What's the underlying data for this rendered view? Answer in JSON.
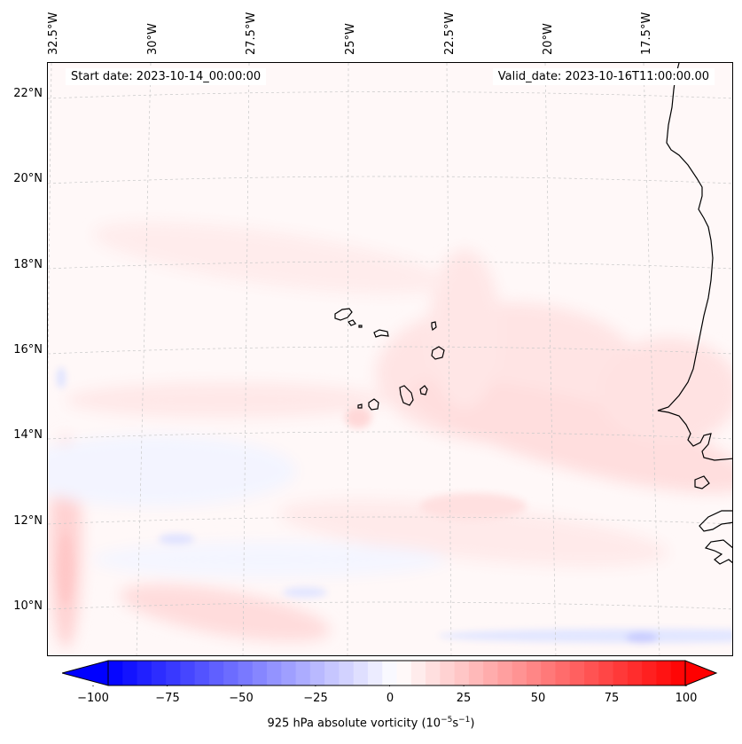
{
  "header": {
    "start_date": "Start date: 2023-10-14_00:00:00",
    "valid_date": "Valid_date: 2023-10-16T11:00:00.00"
  },
  "map": {
    "lon_labels": [
      "32.5°W",
      "30°W",
      "27.5°W",
      "25°W",
      "22.5°W",
      "20°W",
      "17.5°W"
    ],
    "lat_labels": [
      "22°N",
      "20°N",
      "18°N",
      "16°N",
      "14°N",
      "12°N",
      "10°N"
    ],
    "gridlines": true,
    "coastline_color": "#000000"
  },
  "colorbar": {
    "min": -100,
    "max": 100,
    "ticks": [
      "−100",
      "−75",
      "−50",
      "−25",
      "0",
      "25",
      "50",
      "75",
      "100"
    ],
    "colormap": "bwr",
    "extend": "both",
    "label_main": "925 hPa absolute vorticity (10",
    "label_exp1": "−5",
    "label_mid": "s",
    "label_exp2": "−1",
    "label_end": ")"
  }
}
